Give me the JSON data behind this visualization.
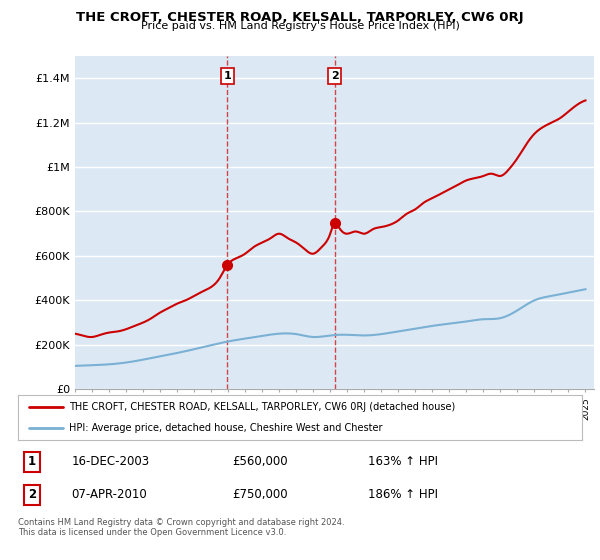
{
  "title": "THE CROFT, CHESTER ROAD, KELSALL, TARPORLEY, CW6 0RJ",
  "subtitle": "Price paid vs. HM Land Registry's House Price Index (HPI)",
  "ylim": [
    0,
    1500000
  ],
  "yticks": [
    0,
    200000,
    400000,
    600000,
    800000,
    1000000,
    1200000,
    1400000
  ],
  "ytick_labels": [
    "£0",
    "£200K",
    "£400K",
    "£600K",
    "£800K",
    "£1M",
    "£1.2M",
    "£1.4M"
  ],
  "background_color": "#ffffff",
  "plot_bg_color": "#dce9f5",
  "grid_color": "#ffffff",
  "red_color": "#cc0000",
  "blue_color": "#7ab0d4",
  "sale1_x": 2003.96,
  "sale1_y": 560000,
  "sale1_label": "1",
  "sale2_x": 2010.27,
  "sale2_y": 750000,
  "sale2_label": "2",
  "legend_line1": "THE CROFT, CHESTER ROAD, KELSALL, TARPORLEY, CW6 0RJ (detached house)",
  "legend_line2": "HPI: Average price, detached house, Cheshire West and Chester",
  "table_row1_num": "1",
  "table_row1_date": "16-DEC-2003",
  "table_row1_price": "£560,000",
  "table_row1_hpi": "163% ↑ HPI",
  "table_row2_num": "2",
  "table_row2_date": "07-APR-2010",
  "table_row2_price": "£750,000",
  "table_row2_hpi": "186% ↑ HPI",
  "footer": "Contains HM Land Registry data © Crown copyright and database right 2024.\nThis data is licensed under the Open Government Licence v3.0.",
  "xlim_left": 1995,
  "xlim_right": 2025.5
}
